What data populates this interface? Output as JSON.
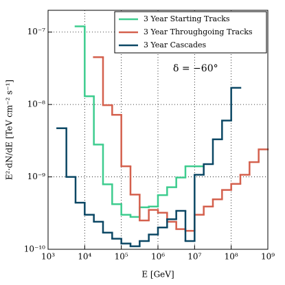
{
  "chart_data": {
    "type": "step",
    "xlabel": "E  [GeV]",
    "ylabel": "E²·dN/dE  [TeV cm⁻² s⁻¹]",
    "annotation": "δ = −60°",
    "log_x": true,
    "log_y": true,
    "grid": true,
    "legend": "upper right",
    "xlim": [
      1000,
      1000000000
    ],
    "ylim": [
      1e-10,
      2e-07
    ],
    "xticks": [
      {
        "value": 1000,
        "label": "10³"
      },
      {
        "value": 10000,
        "label": "10⁴"
      },
      {
        "value": 100000,
        "label": "10⁵"
      },
      {
        "value": 1000000,
        "label": "10⁶"
      },
      {
        "value": 10000000,
        "label": "10⁷"
      },
      {
        "value": 100000000,
        "label": "10⁸"
      },
      {
        "value": 1000000000,
        "label": "10⁹"
      }
    ],
    "yticks": [
      {
        "value": 1e-10,
        "label": "10⁻¹⁰"
      },
      {
        "value": 1e-09,
        "label": "10⁻⁹"
      },
      {
        "value": 1e-08,
        "label": "10⁻⁸"
      },
      {
        "value": 1e-07,
        "label": "10⁻⁷"
      }
    ],
    "series": [
      {
        "name": "3 Year Starting Tracks",
        "color": "#3dcc8e",
        "bins": [
          5623,
          10000,
          17783,
          31623,
          56234,
          100000,
          177828,
          316228,
          562341,
          1000000,
          1778279,
          3162278,
          5623413,
          10000000,
          17782794
        ],
        "values": [
          1.2e-07,
          1.3e-08,
          2.8e-09,
          7.9e-10,
          4.2e-10,
          3e-10,
          2.8e-10,
          3.8e-10,
          3.9e-10,
          5.6e-10,
          7.2e-10,
          9.8e-10,
          1.4e-09,
          1.4e-09
        ]
      },
      {
        "name": "3 Year Throughgoing Tracks",
        "color": "#d4604d",
        "bins": [
          17783,
          31623,
          56234,
          100000,
          177828,
          316228,
          562341,
          1000000,
          1778279,
          3162278,
          5623413,
          10000000,
          17782794,
          31622777,
          56234133,
          100000000,
          177827941,
          316227766,
          562341325,
          1000000000
        ],
        "values": [
          4.5e-08,
          9.8e-09,
          7.2e-09,
          1.4e-09,
          5.7e-10,
          2.5e-10,
          3.5e-10,
          3.2e-10,
          2.4e-10,
          1.9e-10,
          1.8e-10,
          3e-10,
          3.9e-10,
          4.9e-10,
          6.6e-10,
          8e-10,
          1.07e-09,
          1.6e-09,
          2.4e-09
        ]
      },
      {
        "name": "3 Year Cascades",
        "color": "#0b4764",
        "bins": [
          1778,
          3162,
          5623,
          10000,
          17783,
          31623,
          56234,
          100000,
          177828,
          316228,
          562341,
          1000000,
          1778279,
          3162278,
          5623413,
          10000000,
          17782794,
          31622777,
          56234133,
          100000000,
          177827941
        ],
        "values": [
          4.7e-09,
          1e-09,
          4.4e-10,
          3e-10,
          2.4e-10,
          1.7e-10,
          1.4e-10,
          1.2e-10,
          1.1e-10,
          1.3e-10,
          1.6e-10,
          2e-10,
          2.6e-10,
          3.4e-10,
          1.3e-10,
          1.07e-09,
          1.5e-09,
          3.3e-09,
          6e-09,
          1.7e-08
        ]
      }
    ]
  }
}
